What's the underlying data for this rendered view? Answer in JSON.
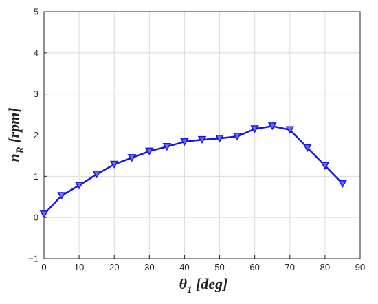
{
  "chart_data": {
    "type": "line",
    "xlabel": {
      "main": "θ",
      "sub": "1",
      "rest": " [deg]"
    },
    "ylabel": {
      "main": "n",
      "sub": "R",
      "rest": " [rpm]"
    },
    "xlim": [
      0,
      90
    ],
    "ylim": [
      -1,
      5
    ],
    "xticks": [
      0,
      10,
      20,
      30,
      40,
      50,
      60,
      70,
      80,
      90
    ],
    "yticks": [
      -1,
      0,
      1,
      2,
      3,
      4,
      5
    ],
    "grid": true,
    "series": [
      {
        "color": "#1414e6",
        "marker": "triangle-down",
        "x": [
          0,
          5,
          10,
          15,
          20,
          25,
          30,
          35,
          40,
          45,
          50,
          55,
          60,
          65,
          70,
          75,
          80,
          85
        ],
        "y": [
          0.08,
          0.53,
          0.78,
          1.05,
          1.29,
          1.45,
          1.61,
          1.72,
          1.84,
          1.89,
          1.92,
          1.97,
          2.15,
          2.22,
          2.13,
          1.69,
          1.26,
          0.82
        ]
      }
    ]
  }
}
